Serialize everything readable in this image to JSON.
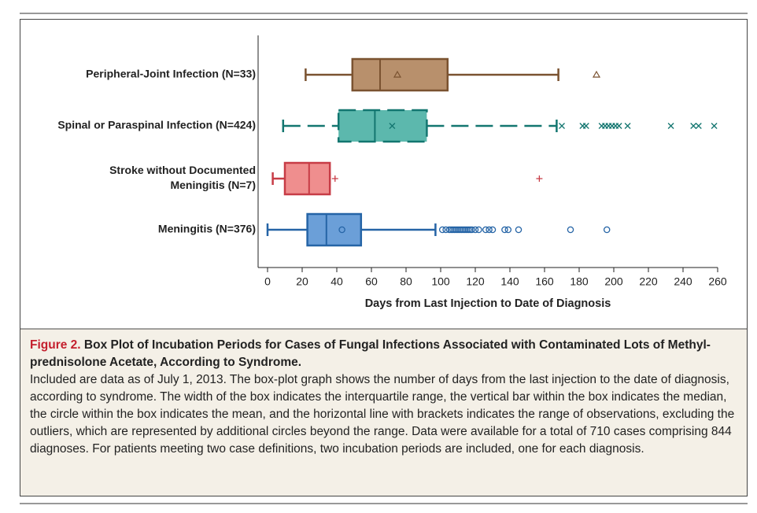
{
  "chart_data": {
    "type": "box",
    "categories": [
      [
        "Peripheral-Joint Infection (N=33)"
      ],
      [
        "Spinal or Paraspinal Infection (N=424)"
      ],
      [
        "Stroke without Documented",
        "Meningitis (N=7)"
      ],
      [
        "Meningitis (N=376)"
      ]
    ],
    "series": [
      {
        "color": "#7a5230",
        "fill": "#b8906c",
        "marker": "triangle",
        "line_style": "solid",
        "min": 22,
        "q1": 49,
        "median": 65,
        "mean": 75,
        "q3": 104,
        "max": 168,
        "outliers": [
          190
        ]
      },
      {
        "color": "#137670",
        "fill": "#5cb8ad",
        "marker": "x",
        "line_style": "dashed",
        "min": 9,
        "q1": 41,
        "median": 62,
        "mean": 72,
        "q3": 92,
        "max": 167,
        "outliers": [
          170,
          182,
          184,
          193,
          195,
          197,
          199,
          201,
          203,
          208,
          233,
          246,
          249,
          258
        ]
      },
      {
        "color": "#c73c46",
        "fill": "#ef8e8e",
        "marker": "plus",
        "line_style": "solid",
        "min": 3,
        "q1": 10,
        "median": 24,
        "mean": 39,
        "q3": 36,
        "max": 36,
        "outliers": [
          157
        ]
      },
      {
        "color": "#2564a6",
        "fill": "#6b9fd8",
        "marker": "circle",
        "line_style": "solid",
        "min": 0,
        "q1": 23,
        "median": 34,
        "mean": 43,
        "q3": 54,
        "max": 97,
        "outliers": [
          101,
          103,
          105,
          106,
          107,
          108,
          109,
          110,
          111,
          112,
          113,
          114,
          115,
          116,
          117,
          118,
          120,
          122,
          126,
          128,
          130,
          137,
          139,
          145,
          175,
          196
        ]
      }
    ],
    "xlim": [
      0,
      260
    ],
    "xticks": [
      0,
      20,
      40,
      60,
      80,
      100,
      120,
      140,
      160,
      180,
      200,
      220,
      240,
      260
    ],
    "xlabel": "Days from Last Injection to Date of Diagnosis"
  },
  "caption": {
    "label": "Figure 2.",
    "title": "Box Plot of Incubation Periods for Cases of Fungal Infections Associated with Contaminated Lots of Methyl-prednisolone Acetate, According to Syndrome.",
    "body": "Included are data as of July 1, 2013. The box-plot graph shows the number of days from the last injection to the date of diagnosis, according to syndrome. The width of the box indicates the interquartile range, the vertical bar within the box indicates the median, the circle within the box indicates the mean, and the horizontal line with brackets indicates the range of observations, excluding the outliers, which are represented by additional circles beyond the range. Data were available for a total of 710 cases comprising 844 diagnoses. For patients meeting two case definitions, two incubation periods are included, one for each diagnosis."
  }
}
